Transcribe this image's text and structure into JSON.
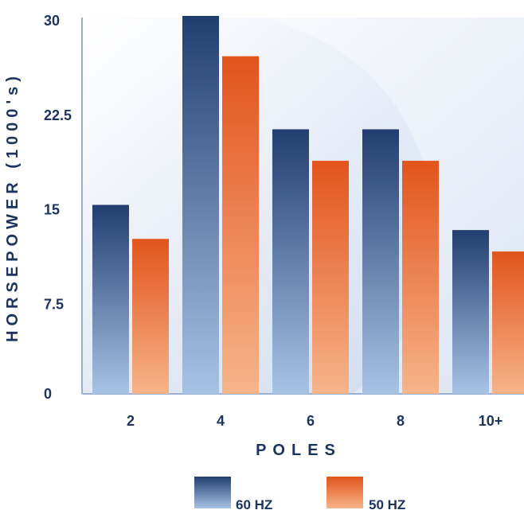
{
  "chart_data": {
    "type": "bar",
    "title": "",
    "xlabel": "POLES",
    "ylabel": "HORSEPOWER (1000's)",
    "categories": [
      "2",
      "4",
      "6",
      "8",
      "10+"
    ],
    "yticks": [
      "0",
      "7.5",
      "15",
      "22.5",
      "30"
    ],
    "ylim": [
      0,
      30
    ],
    "grid": false,
    "legend_position": "bottom",
    "series": [
      {
        "name": "60 HZ",
        "values": [
          15,
          30,
          21,
          21,
          13
        ]
      },
      {
        "name": "50 HZ",
        "values": [
          12.3,
          26.8,
          18.5,
          18.5,
          11.3
        ]
      }
    ]
  },
  "colors": {
    "series_60": [
      "#223d70",
      "#a9c3e6"
    ],
    "series_50": [
      "#e2541c",
      "#f7b48a"
    ],
    "text": "#1d3461",
    "plot_bg": [
      "#ffffff",
      "#c9d7ec"
    ],
    "axis_line": "#9bb0d0"
  }
}
